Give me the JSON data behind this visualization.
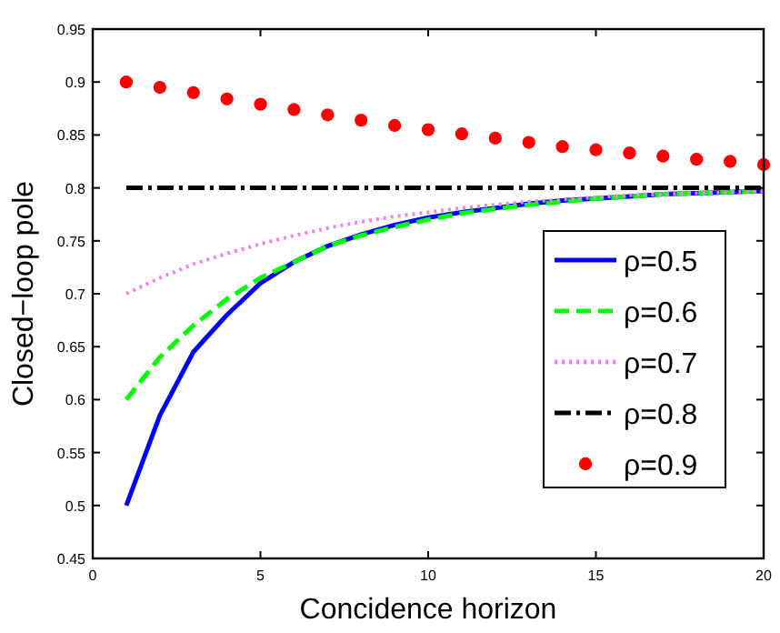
{
  "chart_data": {
    "type": "line",
    "xlabel": "Concidence horizon",
    "ylabel": "Closed−loop pole",
    "x": [
      1,
      2,
      3,
      4,
      5,
      6,
      7,
      8,
      9,
      10,
      11,
      12,
      13,
      14,
      15,
      16,
      17,
      18,
      19,
      20
    ],
    "xlim": [
      0,
      20
    ],
    "xticks": [
      0,
      5,
      10,
      15,
      20
    ],
    "ylim": [
      0.45,
      0.95
    ],
    "yticks": [
      0.45,
      0.5,
      0.55,
      0.6,
      0.65,
      0.7,
      0.75,
      0.8,
      0.85,
      0.9,
      0.95
    ],
    "grid": false,
    "legend": "right",
    "series": [
      {
        "name": "ρ=0.5",
        "color": "#0000ff",
        "line_style": "solid",
        "marker": "none",
        "values": [
          0.5,
          0.585,
          0.645,
          0.68,
          0.71,
          0.73,
          0.745,
          0.756,
          0.765,
          0.772,
          0.777,
          0.781,
          0.785,
          0.788,
          0.79,
          0.792,
          0.794,
          0.795,
          0.796,
          0.797
        ]
      },
      {
        "name": "ρ=0.6",
        "color": "#00ff00",
        "line_style": "dashed",
        "marker": "none",
        "values": [
          0.6,
          0.64,
          0.67,
          0.695,
          0.715,
          0.73,
          0.745,
          0.755,
          0.763,
          0.77,
          0.776,
          0.78,
          0.784,
          0.787,
          0.79,
          0.792,
          0.794,
          0.795,
          0.796,
          0.797
        ]
      },
      {
        "name": "ρ=0.7",
        "color": "#ee82ee",
        "line_style": "dotted",
        "marker": "none",
        "values": [
          0.7,
          0.715,
          0.728,
          0.738,
          0.747,
          0.755,
          0.762,
          0.768,
          0.773,
          0.777,
          0.781,
          0.784,
          0.787,
          0.789,
          0.791,
          0.793,
          0.794,
          0.795,
          0.796,
          0.797
        ]
      },
      {
        "name": "ρ=0.8",
        "color": "#000000",
        "line_style": "dashdot",
        "marker": "none",
        "values": [
          0.8,
          0.8,
          0.8,
          0.8,
          0.8,
          0.8,
          0.8,
          0.8,
          0.8,
          0.8,
          0.8,
          0.8,
          0.8,
          0.8,
          0.8,
          0.8,
          0.8,
          0.8,
          0.8,
          0.8
        ]
      },
      {
        "name": "ρ=0.9",
        "color": "#ff0000",
        "type": "scatter",
        "marker": "circle",
        "values": [
          0.9,
          0.895,
          0.89,
          0.884,
          0.879,
          0.874,
          0.869,
          0.864,
          0.859,
          0.855,
          0.851,
          0.847,
          0.843,
          0.839,
          0.836,
          0.833,
          0.83,
          0.827,
          0.825,
          0.822
        ]
      }
    ]
  }
}
